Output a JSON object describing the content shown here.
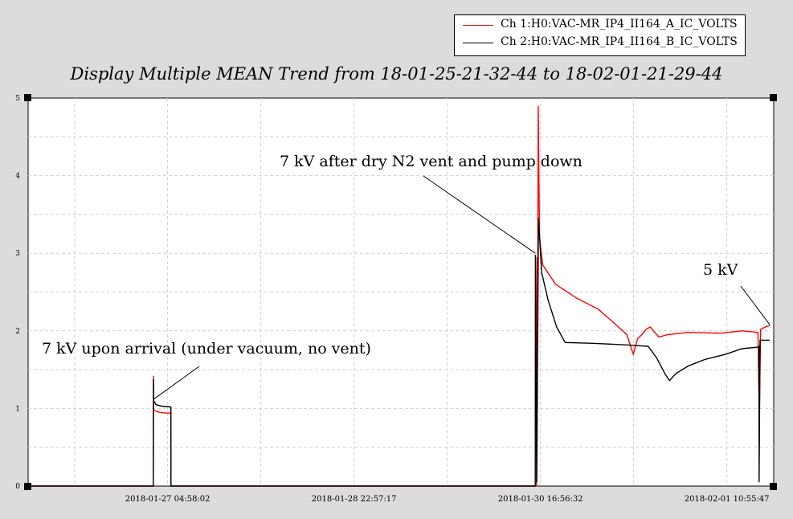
{
  "chart_data": {
    "type": "line",
    "title": "Display Multiple MEAN Trend from 18-01-25-21-32-44 to 18-02-01-21-29-44",
    "ylim": [
      0,
      5
    ],
    "y_ticks": [
      "0",
      "1",
      "2",
      "3",
      "4",
      "5"
    ],
    "x_range": [
      "2018-01-25 21:32:44",
      "2018-02-01 21:29:44"
    ],
    "x_ticks": [
      {
        "label": "2018-01-27 04:58:02",
        "t": 1.3096
      },
      {
        "label": "2018-01-28 22:57:17",
        "t": 3.0591
      },
      {
        "label": "2018-01-30 16:56:32",
        "t": 4.8086
      },
      {
        "label": "2018-02-01 10:55:47",
        "t": 6.5581
      }
    ],
    "grid": true,
    "legend_position": "top-right",
    "series": [
      {
        "name": "Ch 1:H0:VAC-MR_IP4_II164_A_IC_VOLTS",
        "color": "#ff0000",
        "points": [
          [
            0,
            0
          ],
          [
            1.12,
            0
          ],
          [
            1.175,
            0
          ],
          [
            1.176,
            1.42
          ],
          [
            1.178,
            0.98
          ],
          [
            1.19,
            0.97
          ],
          [
            1.23,
            0.95
          ],
          [
            1.3,
            0.94
          ],
          [
            1.34,
            0.94
          ],
          [
            1.341,
            0
          ],
          [
            4.77,
            0
          ],
          [
            4.771,
            1.85
          ],
          [
            4.776,
            2.95
          ],
          [
            4.782,
            1.82
          ],
          [
            4.788,
            4.9
          ],
          [
            4.8,
            3.2
          ],
          [
            4.83,
            2.85
          ],
          [
            4.95,
            2.6
          ],
          [
            5.15,
            2.42
          ],
          [
            5.35,
            2.28
          ],
          [
            5.5,
            2.1
          ],
          [
            5.62,
            1.95
          ],
          [
            5.66,
            1.78
          ],
          [
            5.68,
            1.7
          ],
          [
            5.72,
            1.9
          ],
          [
            5.76,
            1.95
          ],
          [
            5.8,
            2.02
          ],
          [
            5.84,
            2.05
          ],
          [
            5.88,
            1.98
          ],
          [
            5.92,
            1.92
          ],
          [
            6.0,
            1.95
          ],
          [
            6.2,
            1.98
          ],
          [
            6.5,
            1.97
          ],
          [
            6.7,
            2.0
          ],
          [
            6.85,
            1.98
          ],
          [
            6.862,
            0.85
          ],
          [
            6.875,
            2.02
          ],
          [
            6.92,
            2.05
          ],
          [
            6.96,
            2.07
          ]
        ]
      },
      {
        "name": "Ch 2:H0:VAC-MR_IP4_II164_B_IC_VOLTS",
        "color": "#000000",
        "points": [
          [
            0,
            0
          ],
          [
            1.175,
            0
          ],
          [
            1.176,
            1.38
          ],
          [
            1.179,
            1.1
          ],
          [
            1.2,
            1.05
          ],
          [
            1.25,
            1.03
          ],
          [
            1.34,
            1.02
          ],
          [
            1.341,
            0
          ],
          [
            4.76,
            0
          ],
          [
            4.761,
            2.98
          ],
          [
            4.774,
            0.05
          ],
          [
            4.79,
            3.45
          ],
          [
            4.82,
            2.75
          ],
          [
            4.88,
            2.4
          ],
          [
            4.96,
            2.05
          ],
          [
            5.04,
            1.85
          ],
          [
            5.3,
            1.84
          ],
          [
            5.6,
            1.82
          ],
          [
            5.82,
            1.8
          ],
          [
            5.9,
            1.65
          ],
          [
            5.98,
            1.44
          ],
          [
            6.02,
            1.36
          ],
          [
            6.08,
            1.45
          ],
          [
            6.2,
            1.55
          ],
          [
            6.35,
            1.63
          ],
          [
            6.55,
            1.7
          ],
          [
            6.7,
            1.77
          ],
          [
            6.85,
            1.79
          ],
          [
            6.86,
            1.8
          ],
          [
            6.861,
            0.05
          ],
          [
            6.87,
            1.88
          ],
          [
            6.96,
            1.88
          ]
        ]
      }
    ],
    "annotations": [
      {
        "text": "7 kV after dry N2 vent and pump down",
        "point": [
          4.76,
          3.0
        ]
      },
      {
        "text": "5 kV",
        "point": [
          6.96,
          2.08
        ]
      },
      {
        "text": "7 kV upon arrival (under vacuum, no vent)",
        "point": [
          1.18,
          1.12
        ]
      }
    ]
  }
}
